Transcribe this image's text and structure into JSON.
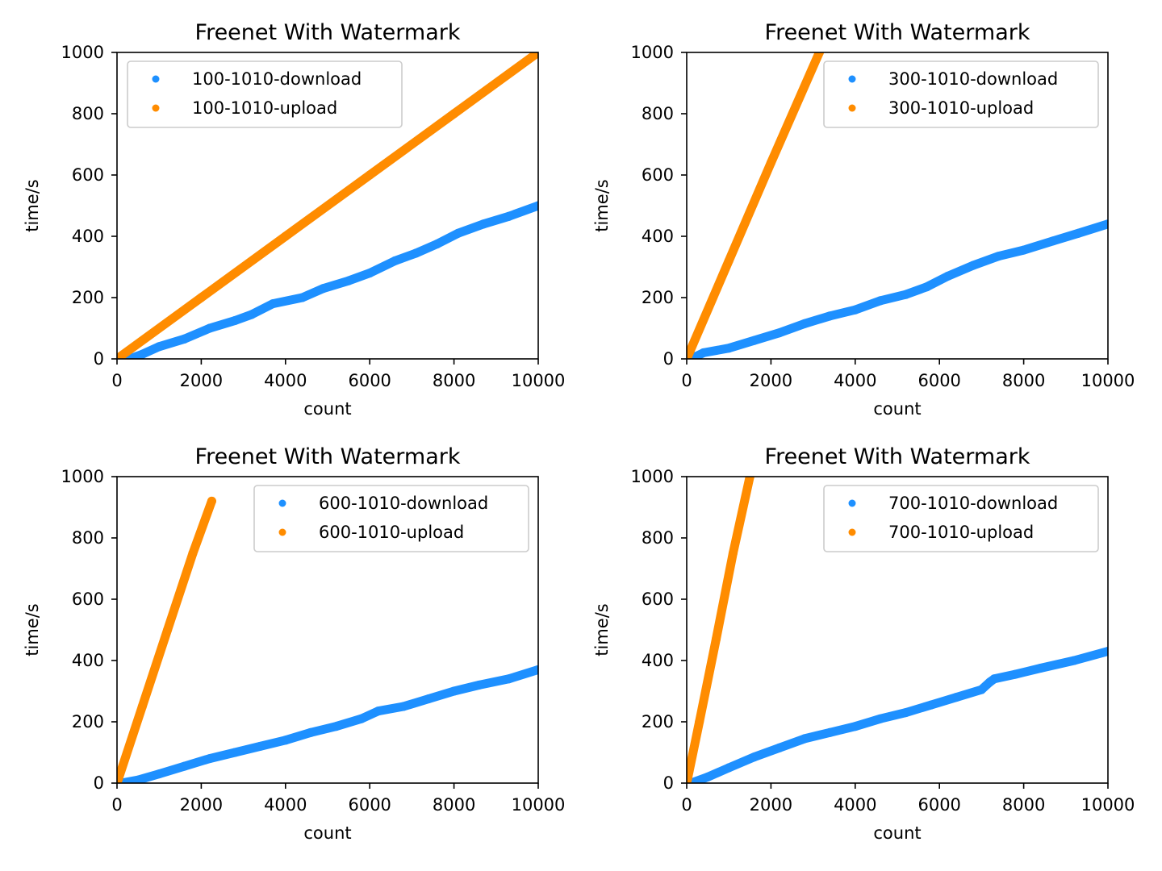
{
  "chart_data": [
    {
      "type": "scatter",
      "title": "Freenet With Watermark",
      "xlabel": "count",
      "ylabel": "time/s",
      "xlim": [
        0,
        10000
      ],
      "ylim": [
        0,
        1000
      ],
      "xticks": [
        0,
        2000,
        4000,
        6000,
        8000,
        10000
      ],
      "yticks": [
        0,
        200,
        400,
        600,
        800,
        1000
      ],
      "legend_position": "upper-left",
      "series": [
        {
          "name": "100-1010-download",
          "color": "#1e90ff",
          "points": [
            [
              300,
              0
            ],
            [
              600,
              15
            ],
            [
              1000,
              40
            ],
            [
              1600,
              65
            ],
            [
              2200,
              100
            ],
            [
              2800,
              125
            ],
            [
              3200,
              145
            ],
            [
              3700,
              180
            ],
            [
              4400,
              200
            ],
            [
              4900,
              230
            ],
            [
              5500,
              255
            ],
            [
              6000,
              280
            ],
            [
              6600,
              320
            ],
            [
              7100,
              345
            ],
            [
              7600,
              375
            ],
            [
              8100,
              410
            ],
            [
              8700,
              440
            ],
            [
              9300,
              465
            ],
            [
              10000,
              500
            ]
          ]
        },
        {
          "name": "100-1010-upload",
          "color": "#ff8c00",
          "points": [
            [
              0,
              0
            ],
            [
              2000,
              200
            ],
            [
              4000,
              400
            ],
            [
              6000,
              600
            ],
            [
              8000,
              800
            ],
            [
              10000,
              1000
            ]
          ]
        }
      ]
    },
    {
      "type": "scatter",
      "title": "Freenet With Watermark",
      "xlabel": "count",
      "ylabel": "time/s",
      "xlim": [
        0,
        10000
      ],
      "ylim": [
        0,
        1000
      ],
      "xticks": [
        0,
        2000,
        4000,
        6000,
        8000,
        10000
      ],
      "yticks": [
        0,
        200,
        400,
        600,
        800,
        1000
      ],
      "legend_position": "upper-right",
      "series": [
        {
          "name": "300-1010-download",
          "color": "#1e90ff",
          "points": [
            [
              100,
              0
            ],
            [
              400,
              20
            ],
            [
              1000,
              35
            ],
            [
              1600,
              60
            ],
            [
              2200,
              85
            ],
            [
              2800,
              115
            ],
            [
              3400,
              140
            ],
            [
              4000,
              160
            ],
            [
              4600,
              190
            ],
            [
              5200,
              210
            ],
            [
              5700,
              235
            ],
            [
              6200,
              270
            ],
            [
              6800,
              305
            ],
            [
              7400,
              335
            ],
            [
              8000,
              355
            ],
            [
              8700,
              385
            ],
            [
              9300,
              410
            ],
            [
              10000,
              440
            ]
          ]
        },
        {
          "name": "300-1010-upload",
          "color": "#ff8c00",
          "points": [
            [
              0,
              0
            ],
            [
              1000,
              320
            ],
            [
              2000,
              640
            ],
            [
              3150,
              1000
            ]
          ]
        }
      ]
    },
    {
      "type": "scatter",
      "title": "Freenet With Watermark",
      "xlabel": "count",
      "ylabel": "time/s",
      "xlim": [
        0,
        10000
      ],
      "ylim": [
        0,
        1000
      ],
      "xticks": [
        0,
        2000,
        4000,
        6000,
        8000,
        10000
      ],
      "yticks": [
        0,
        200,
        400,
        600,
        800,
        1000
      ],
      "legend_position": "upper-right",
      "series": [
        {
          "name": "600-1010-download",
          "color": "#1e90ff",
          "points": [
            [
              100,
              0
            ],
            [
              500,
              10
            ],
            [
              1000,
              30
            ],
            [
              1600,
              55
            ],
            [
              2200,
              80
            ],
            [
              2800,
              100
            ],
            [
              3400,
              120
            ],
            [
              4000,
              140
            ],
            [
              4600,
              165
            ],
            [
              5200,
              185
            ],
            [
              5800,
              210
            ],
            [
              6200,
              235
            ],
            [
              6800,
              250
            ],
            [
              7400,
              275
            ],
            [
              8000,
              300
            ],
            [
              8600,
              320
            ],
            [
              9300,
              340
            ],
            [
              10000,
              370
            ]
          ]
        },
        {
          "name": "600-1010-upload",
          "color": "#ff8c00",
          "points": [
            [
              0,
              0
            ],
            [
              600,
              250
            ],
            [
              1200,
              500
            ],
            [
              1800,
              750
            ],
            [
              2250,
              920
            ]
          ]
        }
      ]
    },
    {
      "type": "scatter",
      "title": "Freenet With Watermark",
      "xlabel": "count",
      "ylabel": "time/s",
      "xlim": [
        0,
        10000
      ],
      "ylim": [
        0,
        1000
      ],
      "xticks": [
        0,
        2000,
        4000,
        6000,
        8000,
        10000
      ],
      "yticks": [
        0,
        200,
        400,
        600,
        800,
        1000
      ],
      "legend_position": "upper-right",
      "series": [
        {
          "name": "700-1010-download",
          "color": "#1e90ff",
          "points": [
            [
              100,
              0
            ],
            [
              500,
              20
            ],
            [
              1000,
              50
            ],
            [
              1600,
              85
            ],
            [
              2200,
              115
            ],
            [
              2800,
              145
            ],
            [
              3400,
              165
            ],
            [
              4000,
              185
            ],
            [
              4600,
              210
            ],
            [
              5200,
              230
            ],
            [
              5800,
              255
            ],
            [
              6400,
              280
            ],
            [
              7000,
              305
            ],
            [
              7200,
              330
            ],
            [
              7300,
              340
            ],
            [
              7800,
              355
            ],
            [
              8400,
              375
            ],
            [
              9200,
              400
            ],
            [
              10000,
              430
            ]
          ]
        },
        {
          "name": "700-1010-upload",
          "color": "#ff8c00",
          "points": [
            [
              0,
              0
            ],
            [
              300,
              200
            ],
            [
              700,
              470
            ],
            [
              1100,
              750
            ],
            [
              1500,
              1000
            ]
          ]
        }
      ]
    }
  ]
}
